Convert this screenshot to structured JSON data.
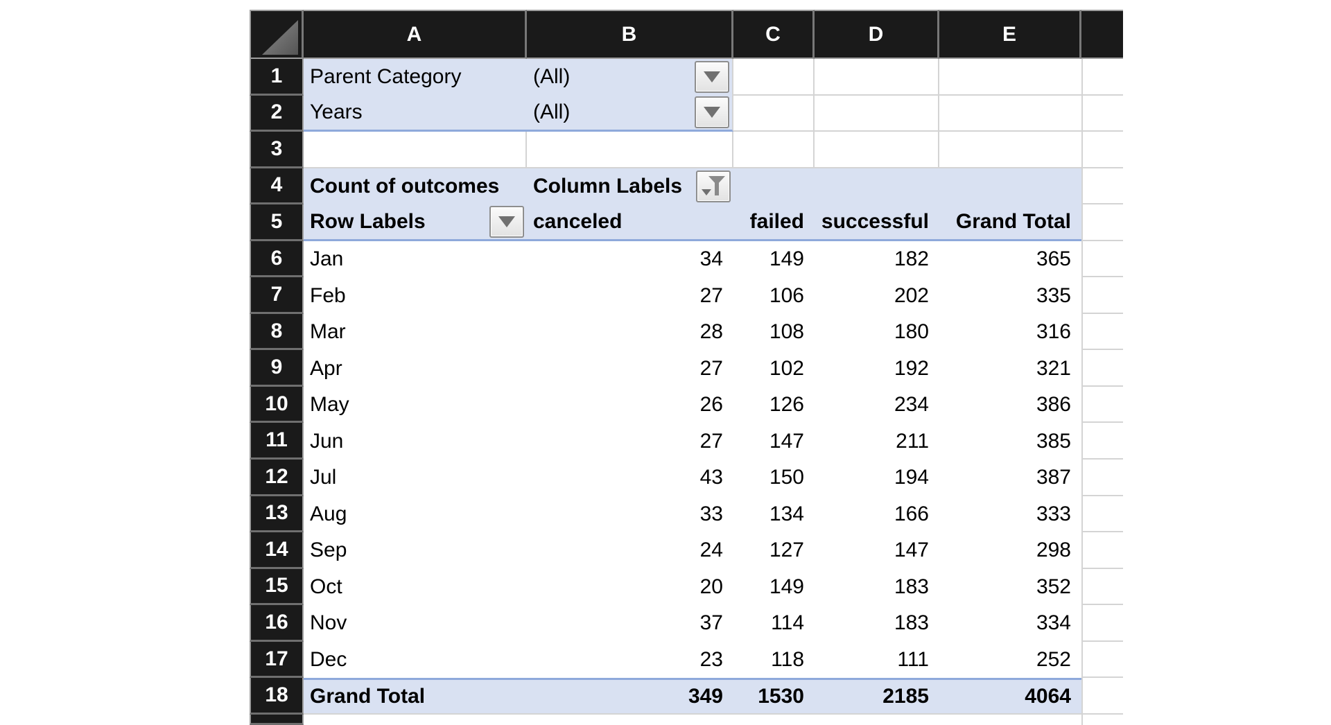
{
  "colors": {
    "header_bg": "#1a1a1a",
    "header_text": "#ffffff",
    "pivot_fill": "#d9e1f2",
    "pivot_accent_border": "#8ea9db",
    "gridline": "#d4d4d4",
    "cell_text": "#000000"
  },
  "column_headers": [
    "A",
    "B",
    "C",
    "D",
    "E"
  ],
  "filters": [
    {
      "row_number": "1",
      "label": "Parent Category",
      "value": "(All)",
      "icon": "dropdown-arrow-icon"
    },
    {
      "row_number": "2",
      "label": "Years",
      "value": "(All)",
      "icon": "dropdown-arrow-icon"
    }
  ],
  "spacer_row_number": "3",
  "pivot": {
    "header_row_number": "4",
    "labels_row_number": "5",
    "title": "Count of outcomes",
    "column_labels_caption": "Column Labels",
    "column_labels_icon": "filter-funnel-icon",
    "row_labels_caption": "Row Labels",
    "row_labels_icon": "dropdown-arrow-icon",
    "column_headers": [
      "canceled",
      "failed",
      "successful",
      "Grand Total"
    ],
    "rows": [
      {
        "row_number": "6",
        "label": "Jan",
        "canceled": "34",
        "failed": "149",
        "successful": "182",
        "total": "365"
      },
      {
        "row_number": "7",
        "label": "Feb",
        "canceled": "27",
        "failed": "106",
        "successful": "202",
        "total": "335"
      },
      {
        "row_number": "8",
        "label": "Mar",
        "canceled": "28",
        "failed": "108",
        "successful": "180",
        "total": "316"
      },
      {
        "row_number": "9",
        "label": "Apr",
        "canceled": "27",
        "failed": "102",
        "successful": "192",
        "total": "321"
      },
      {
        "row_number": "10",
        "label": "May",
        "canceled": "26",
        "failed": "126",
        "successful": "234",
        "total": "386"
      },
      {
        "row_number": "11",
        "label": "Jun",
        "canceled": "27",
        "failed": "147",
        "successful": "211",
        "total": "385"
      },
      {
        "row_number": "12",
        "label": "Jul",
        "canceled": "43",
        "failed": "150",
        "successful": "194",
        "total": "387"
      },
      {
        "row_number": "13",
        "label": "Aug",
        "canceled": "33",
        "failed": "134",
        "successful": "166",
        "total": "333"
      },
      {
        "row_number": "14",
        "label": "Sep",
        "canceled": "24",
        "failed": "127",
        "successful": "147",
        "total": "298"
      },
      {
        "row_number": "15",
        "label": "Oct",
        "canceled": "20",
        "failed": "149",
        "successful": "183",
        "total": "352"
      },
      {
        "row_number": "16",
        "label": "Nov",
        "canceled": "37",
        "failed": "114",
        "successful": "183",
        "total": "334"
      },
      {
        "row_number": "17",
        "label": "Dec",
        "canceled": "23",
        "failed": "118",
        "successful": "111",
        "total": "252"
      }
    ],
    "grand_total": {
      "row_number": "18",
      "label": "Grand Total",
      "canceled": "349",
      "failed": "1530",
      "successful": "2185",
      "total": "4064"
    }
  }
}
